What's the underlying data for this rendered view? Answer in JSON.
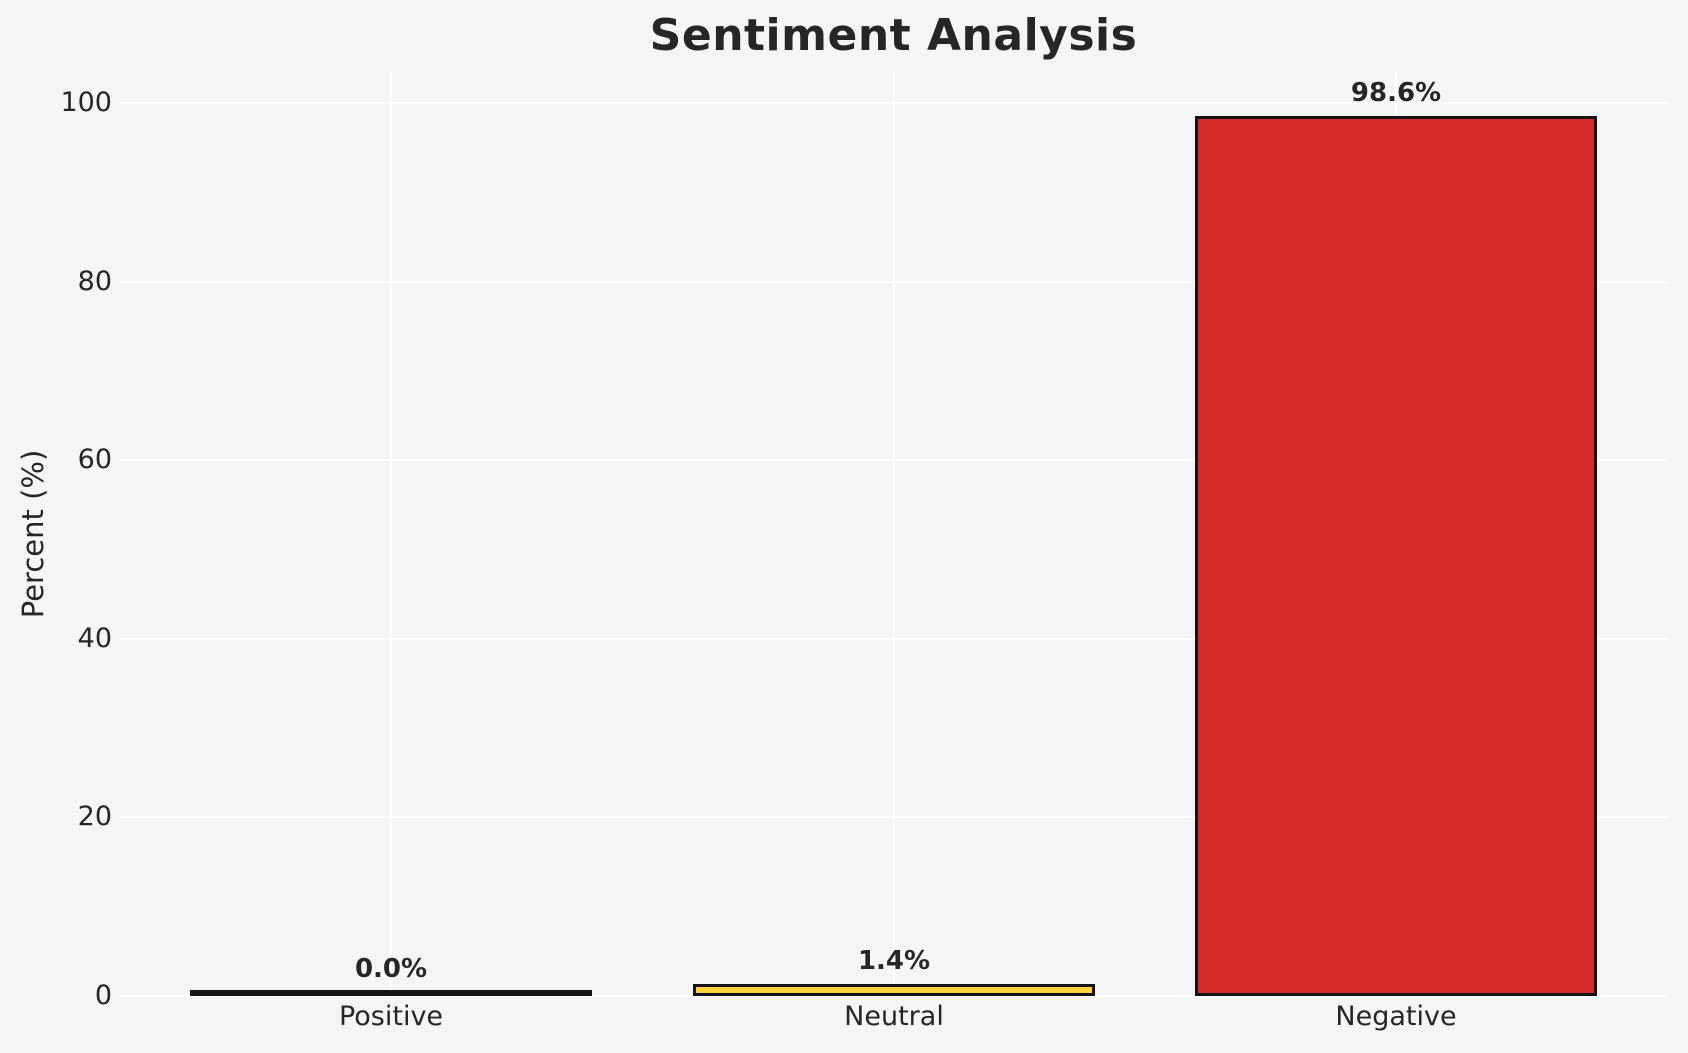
{
  "figure": {
    "background_color": "#f5f5f6",
    "grid_color": "#ffffff",
    "text_color": "#262626"
  },
  "chart_data": {
    "type": "bar",
    "title": "Sentiment Analysis",
    "xlabel": "",
    "ylabel": "Percent (%)",
    "categories": [
      "Positive",
      "Neutral",
      "Negative"
    ],
    "values": [
      0.0,
      1.4,
      98.6
    ],
    "value_labels": [
      "0.0%",
      "1.4%",
      "98.6%"
    ],
    "bar_colors": [
      "transparent",
      "#fcd33a",
      "#d62b2b"
    ],
    "bar_edge_color": "#151515",
    "yticks": [
      0,
      20,
      40,
      60,
      80,
      100
    ],
    "ytick_labels": [
      "0",
      "20",
      "40",
      "60",
      "80",
      "100"
    ],
    "ylim": [
      0,
      103.5
    ],
    "grid": "horizontal and vertical white gridlines",
    "legend_position": "none"
  }
}
